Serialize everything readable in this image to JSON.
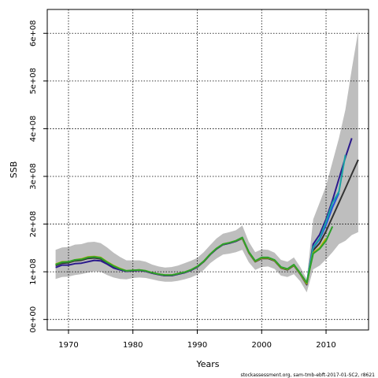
{
  "chart_data": {
    "type": "line",
    "xlabel": "Years",
    "ylabel": "SSB",
    "xlim": [
      1966.7,
      2016.6
    ],
    "ylim": [
      -22000000.0,
      650000000.0
    ],
    "x_ticks": [
      1970,
      1980,
      1990,
      2000,
      2010
    ],
    "x_tick_labels": [
      "1970",
      "1980",
      "1990",
      "2000",
      "2010"
    ],
    "y_ticks": [
      0,
      100000000,
      200000000,
      300000000,
      400000000,
      500000000,
      600000000
    ],
    "y_tick_labels": [
      "0e+00",
      "1e+08",
      "2e+08",
      "3e+08",
      "4e+08",
      "5e+08",
      "6e+08"
    ],
    "grid": true,
    "footnote": "stockassessment.org, sam-tmb-ebft-2017-01-SC2, r8621",
    "colors": {
      "band": "#bebebe",
      "base": "#333333",
      "navy": "#2b1a8c",
      "green": "#2ca02c",
      "teal": "#1aa3a3",
      "blue": "#2255dd",
      "olive": "#b3b300"
    },
    "confidence_band": {
      "x": [
        1968,
        1969,
        1970,
        1971,
        1972,
        1973,
        1974,
        1975,
        1976,
        1977,
        1978,
        1979,
        1980,
        1981,
        1982,
        1983,
        1984,
        1985,
        1986,
        1987,
        1988,
        1989,
        1990,
        1991,
        1992,
        1993,
        1994,
        1995,
        1996,
        1997,
        1998,
        1999,
        2000,
        2001,
        2002,
        2003,
        2004,
        2005,
        2006,
        2007,
        2008,
        2009,
        2010,
        2011,
        2012,
        2013,
        2014,
        2015
      ],
      "lower": [
        85000000,
        89000000,
        90000000,
        93000000,
        95000000,
        98000000,
        101000000,
        100000000,
        93000000,
        88000000,
        85000000,
        84000000,
        87000000,
        88000000,
        87000000,
        84000000,
        81000000,
        79000000,
        79000000,
        81000000,
        84000000,
        88000000,
        94000000,
        104000000,
        118000000,
        128000000,
        136000000,
        138000000,
        141000000,
        146000000,
        120000000,
        104000000,
        110000000,
        111000000,
        106000000,
        92000000,
        89000000,
        95000000,
        80000000,
        57000000,
        105000000,
        113000000,
        126000000,
        141000000,
        158000000,
        165000000,
        177000000,
        183000000
      ],
      "upper": [
        146000000,
        151000000,
        152000000,
        157000000,
        158000000,
        162000000,
        163000000,
        160000000,
        151000000,
        140000000,
        131000000,
        124000000,
        124000000,
        124000000,
        121000000,
        115000000,
        111000000,
        109000000,
        110000000,
        113000000,
        118000000,
        123000000,
        129000000,
        141000000,
        156000000,
        170000000,
        180000000,
        183000000,
        187000000,
        197000000,
        163000000,
        141000000,
        147000000,
        146000000,
        140000000,
        125000000,
        121000000,
        130000000,
        110000000,
        85000000,
        210000000,
        245000000,
        280000000,
        330000000,
        380000000,
        440000000,
        525000000,
        605000000
      ]
    },
    "series": [
      {
        "color_key": "base",
        "x": [
          1968,
          1969,
          1970,
          1971,
          1972,
          1973,
          1974,
          1975,
          1976,
          1977,
          1978,
          1979,
          1980,
          1981,
          1982,
          1983,
          1984,
          1985,
          1986,
          1987,
          1988,
          1989,
          1990,
          1991,
          1992,
          1993,
          1994,
          1995,
          1996,
          1997,
          1998,
          1999,
          2000,
          2001,
          2002,
          2003,
          2004,
          2005,
          2006,
          2007,
          2008,
          2009,
          2010,
          2011,
          2012,
          2013,
          2014,
          2015
        ],
        "y": [
          113000000,
          118000000,
          119000000,
          123000000,
          124000000,
          128000000,
          129000000,
          127000000,
          119000000,
          111000000,
          106000000,
          101000000,
          102000000,
          103000000,
          101000000,
          97000000,
          94000000,
          92000000,
          92000000,
          95000000,
          98000000,
          103000000,
          110000000,
          121000000,
          136000000,
          148000000,
          157000000,
          160000000,
          164000000,
          170000000,
          140000000,
          121000000,
          128000000,
          128000000,
          123000000,
          108000000,
          104000000,
          113000000,
          95000000,
          73000000,
          145000000,
          160000000,
          185000000,
          215000000,
          245000000,
          275000000,
          305000000,
          335000000
        ]
      },
      {
        "color_key": "navy",
        "x": [
          1968,
          1969,
          1970,
          1971,
          1972,
          1973,
          1974,
          1975,
          1976,
          1977,
          1978,
          1979,
          1980,
          1981,
          1982,
          1983,
          1984,
          1985,
          1986,
          1987,
          1988,
          1989,
          1990,
          1991,
          1992,
          1993,
          1994,
          1995,
          1996,
          1997,
          1998,
          1999,
          2000,
          2001,
          2002,
          2003,
          2004,
          2005,
          2006,
          2007,
          2008,
          2009,
          2010,
          2011,
          2012,
          2013,
          2014
        ],
        "y": [
          109000000,
          114000000,
          114000000,
          117000000,
          118000000,
          121000000,
          124000000,
          123000000,
          116000000,
          108000000,
          104000000,
          101000000,
          102000000,
          103000000,
          101000000,
          97000000,
          94000000,
          92000000,
          92000000,
          95000000,
          98000000,
          103000000,
          110000000,
          122000000,
          136000000,
          148000000,
          157000000,
          160000000,
          164000000,
          171000000,
          141000000,
          122000000,
          129000000,
          129000000,
          124000000,
          109000000,
          105000000,
          114000000,
          96000000,
          74000000,
          158000000,
          178000000,
          210000000,
          250000000,
          295000000,
          340000000,
          380000000
        ]
      },
      {
        "color_key": "blue",
        "x": [
          2008,
          2009,
          2010,
          2011,
          2012
        ],
        "y": [
          150000000,
          168000000,
          198000000,
          235000000,
          265000000
        ]
      },
      {
        "color_key": "teal",
        "x": [
          2007,
          2008,
          2009,
          2010,
          2011,
          2012,
          2013
        ],
        "y": [
          77000000,
          152000000,
          170000000,
          205000000,
          245000000,
          268000000,
          345000000
        ]
      },
      {
        "color_key": "olive",
        "x": [
          1968,
          1969,
          1970,
          1971,
          1972,
          1973,
          1974,
          1975,
          1976,
          1977,
          1978,
          1979,
          1980,
          1981,
          1982,
          1983,
          1984,
          1985,
          1986,
          1987,
          1988,
          1989,
          1990,
          1991,
          1992,
          1993,
          1994,
          1995,
          1996,
          1997,
          1998,
          1999,
          2000,
          2001,
          2002,
          2003,
          2004,
          2005,
          2006,
          2007,
          2008,
          2009,
          2010
        ],
        "y": [
          116000000,
          121000000,
          121000000,
          125000000,
          127000000,
          131000000,
          132000000,
          130000000,
          121000000,
          113000000,
          107000000,
          102000000,
          103000000,
          104000000,
          102000000,
          98000000,
          95000000,
          93000000,
          93000000,
          96000000,
          99000000,
          104000000,
          111000000,
          122000000,
          137000000,
          149000000,
          158000000,
          161000000,
          165000000,
          171000000,
          141000000,
          122000000,
          129000000,
          129000000,
          124000000,
          109000000,
          105000000,
          114000000,
          96000000,
          75000000,
          140000000,
          150000000,
          170000000
        ]
      },
      {
        "color_key": "green",
        "x": [
          1968,
          1969,
          1970,
          1971,
          1972,
          1973,
          1974,
          1975,
          1976,
          1977,
          1978,
          1979,
          1980,
          1981,
          1982,
          1983,
          1984,
          1985,
          1986,
          1987,
          1988,
          1989,
          1990,
          1991,
          1992,
          1993,
          1994,
          1995,
          1996,
          1997,
          1998,
          1999,
          2000,
          2001,
          2002,
          2003,
          2004,
          2005,
          2006,
          2007,
          2008,
          2009,
          2010,
          2011
        ],
        "y": [
          115000000,
          120000000,
          121000000,
          125000000,
          126000000,
          130000000,
          131000000,
          129000000,
          120000000,
          112000000,
          106000000,
          102000000,
          103000000,
          104000000,
          102000000,
          98000000,
          95000000,
          93000000,
          93000000,
          96000000,
          99000000,
          104000000,
          111000000,
          122000000,
          137000000,
          149000000,
          158000000,
          161000000,
          165000000,
          172000000,
          142000000,
          123000000,
          130000000,
          130000000,
          125000000,
          110000000,
          106000000,
          115000000,
          97000000,
          77000000,
          138000000,
          148000000,
          165000000,
          195000000
        ]
      }
    ]
  }
}
